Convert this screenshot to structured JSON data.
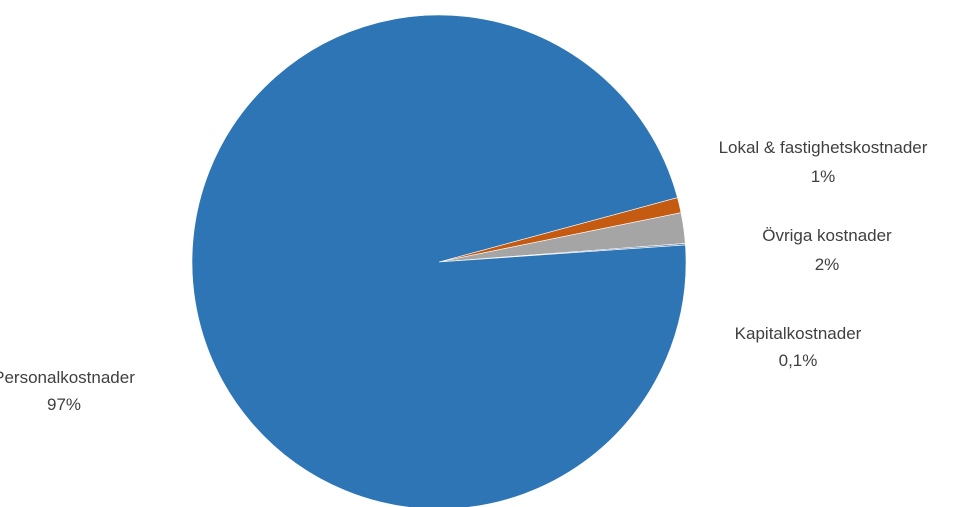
{
  "chart_data": {
    "type": "pie",
    "title": "",
    "slices": [
      {
        "label": "Personalkostnader",
        "value": 96.9,
        "display": "97%",
        "color": "#2E75B6"
      },
      {
        "label": "Lokal & fastighetskostnader",
        "value": 1.0,
        "display": "1%",
        "color": "#C55A11"
      },
      {
        "label": "Övriga kostnader",
        "value": 2.0,
        "display": "2%",
        "color": "#A5A5A5"
      },
      {
        "label": "Kapitalkostnader",
        "value": 0.1,
        "display": "0,1%",
        "color": "#5B7FA6"
      }
    ],
    "legend": "none",
    "labels_placement": "outside"
  }
}
